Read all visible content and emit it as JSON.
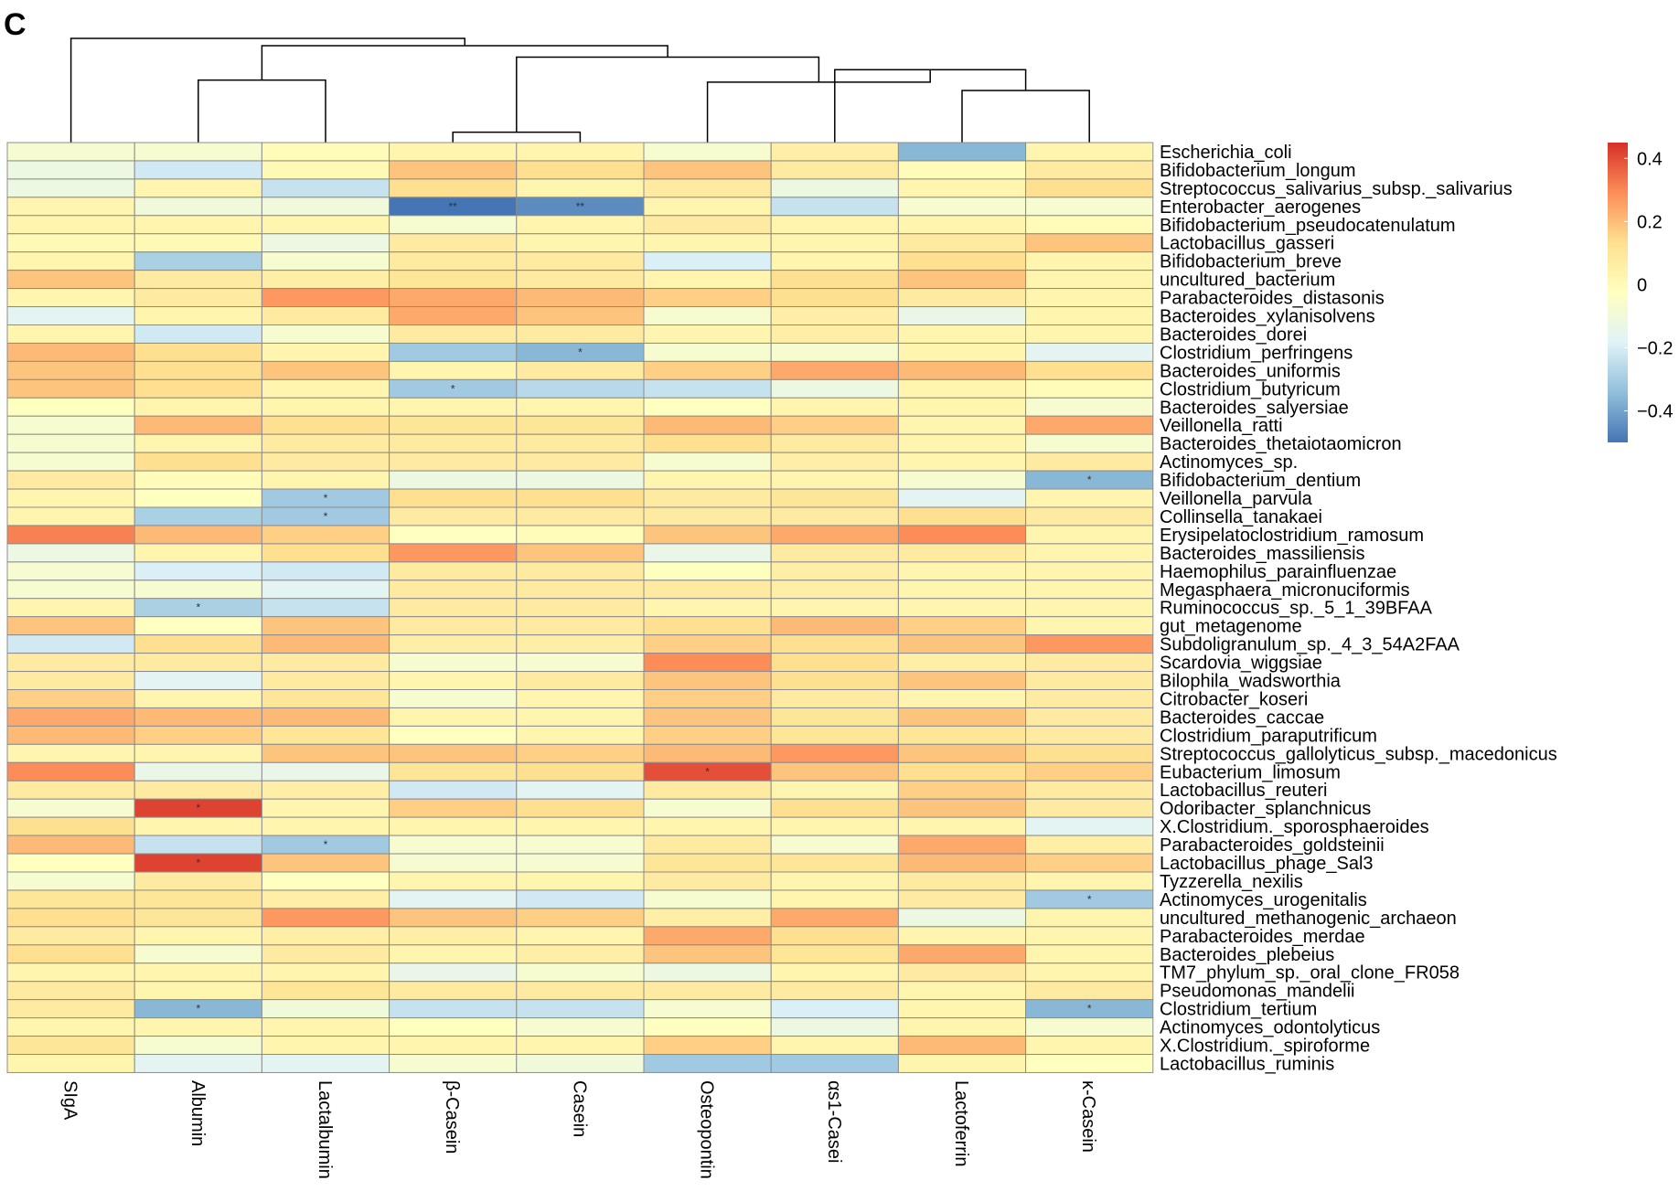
{
  "panel_label": "C",
  "chart_data": {
    "type": "heatmap",
    "title": "",
    "columns": [
      "SIgA",
      "Albumin",
      "Lactalbumin",
      "β-Casein",
      "Casein",
      "Osteopontin",
      "αs1-Casei",
      "Lactoferrin",
      "κ-Casein"
    ],
    "rows": [
      "Escherichia_coli",
      "Bifidobacterium_longum",
      "Streptococcus_salivarius_subsp._salivarius",
      "Enterobacter_aerogenes",
      "Bifidobacterium_pseudocatenulatum",
      "Lactobacillus_gasseri",
      "Bifidobacterium_breve",
      "uncultured_bacterium",
      "Parabacteroides_distasonis",
      "Bacteroides_xylanisolvens",
      "Bacteroides_dorei",
      "Clostridium_perfringens",
      "Bacteroides_uniformis",
      "Clostridium_butyricum",
      "Bacteroides_salyersiae",
      "Veillonella_ratti",
      "Bacteroides_thetaiotaomicron",
      "Actinomyces_sp.",
      "Bifidobacterium_dentium",
      "Veillonella_parvula",
      "Collinsella_tanakaei",
      "Erysipelatoclostridium_ramosum",
      "Bacteroides_massiliensis",
      "Haemophilus_parainfluenzae",
      "Megasphaera_micronuciformis",
      "Ruminococcus_sp._5_1_39BFAA",
      "gut_metagenome",
      "Subdoligranulum_sp._4_3_54A2FAA",
      "Scardovia_wiggsiae",
      "Bilophila_wadsworthia",
      "Citrobacter_koseri",
      "Bacteroides_caccae",
      "Clostridium_paraputrificum",
      "Streptococcus_gallolyticus_subsp._macedonicus",
      "Eubacterium_limosum",
      "Lactobacillus_reuteri",
      "Odoribacter_splanchnicus",
      "X.Clostridium._sporosphaeroides",
      "Parabacteroides_goldsteinii",
      "Lactobacillus_phage_Sal3",
      "Tyzzerella_nexilis",
      "Actinomyces_urogenitalis",
      "uncultured_methanogenic_archaeon",
      "Parabacteroides_merdae",
      "Bacteroides_plebeius",
      "TM7_phylum_sp._oral_clone_FR058",
      "Pseudomonas_mandelii",
      "Clostridium_tertium",
      "Actinomyces_odontolyticus",
      "X.Clostridium._spiroforme",
      "Lactobacillus_ruminis"
    ],
    "values": [
      [
        -0.05,
        -0.05,
        0.02,
        0.05,
        0.05,
        -0.05,
        0.08,
        -0.35,
        0.05
      ],
      [
        -0.1,
        -0.2,
        0.03,
        0.2,
        0.15,
        0.2,
        0.1,
        0.02,
        0.1
      ],
      [
        -0.1,
        0.05,
        -0.22,
        0.15,
        0.05,
        0.1,
        -0.1,
        0.05,
        0.15
      ],
      [
        0.05,
        -0.08,
        -0.08,
        -0.52,
        -0.45,
        0.05,
        -0.22,
        -0.05,
        -0.05
      ],
      [
        0.05,
        0.05,
        0.05,
        -0.05,
        0.05,
        0.1,
        0.05,
        0.05,
        0.02
      ],
      [
        0.03,
        0.03,
        -0.1,
        0.1,
        0.05,
        0.05,
        0.05,
        0.1,
        0.2
      ],
      [
        0.05,
        -0.28,
        -0.05,
        0.1,
        0.1,
        -0.18,
        0.05,
        0.15,
        0.05
      ],
      [
        0.2,
        0.1,
        0.08,
        0.12,
        0.1,
        0.05,
        0.15,
        0.2,
        0.05
      ],
      [
        0.05,
        0.1,
        0.28,
        0.25,
        0.22,
        0.18,
        0.15,
        0.1,
        0.05
      ],
      [
        -0.15,
        0.05,
        0.1,
        0.25,
        0.2,
        -0.05,
        0.08,
        -0.12,
        0.05
      ],
      [
        0.05,
        -0.2,
        -0.05,
        0.1,
        0.1,
        0.05,
        0.08,
        0.05,
        0.05
      ],
      [
        0.22,
        0.15,
        0.05,
        -0.3,
        -0.35,
        -0.05,
        -0.05,
        0.05,
        -0.15
      ],
      [
        0.2,
        0.15,
        0.2,
        0.05,
        0.1,
        0.18,
        0.25,
        0.22,
        0.15
      ],
      [
        0.2,
        0.15,
        0.05,
        -0.3,
        -0.25,
        -0.22,
        -0.1,
        0.05,
        0.02
      ],
      [
        0.0,
        0.05,
        0.05,
        0.05,
        0.05,
        0.0,
        0.05,
        0.05,
        -0.05
      ],
      [
        -0.05,
        0.22,
        0.15,
        0.12,
        0.12,
        0.22,
        0.18,
        0.05,
        0.25
      ],
      [
        -0.05,
        0.05,
        0.1,
        0.1,
        0.1,
        0.15,
        0.1,
        0.05,
        -0.05
      ],
      [
        -0.05,
        0.15,
        0.1,
        0.1,
        0.1,
        -0.05,
        0.08,
        0.05,
        0.1
      ],
      [
        0.1,
        0.02,
        0.05,
        -0.1,
        -0.1,
        0.05,
        0.05,
        -0.05,
        -0.35
      ],
      [
        0.05,
        0.0,
        -0.3,
        0.15,
        0.15,
        0.1,
        0.12,
        -0.15,
        0.05
      ],
      [
        0.05,
        -0.28,
        -0.3,
        0.1,
        0.1,
        0.1,
        0.1,
        0.15,
        0.1
      ],
      [
        0.32,
        0.22,
        0.18,
        0.0,
        0.02,
        0.2,
        0.25,
        0.3,
        0.05
      ],
      [
        -0.1,
        0.05,
        0.15,
        0.28,
        0.2,
        -0.12,
        0.1,
        0.1,
        0.05
      ],
      [
        -0.05,
        -0.18,
        -0.2,
        0.1,
        0.1,
        0.0,
        0.08,
        0.05,
        0.05
      ],
      [
        -0.05,
        -0.05,
        -0.15,
        0.1,
        0.1,
        0.1,
        0.08,
        0.05,
        0.05
      ],
      [
        0.05,
        -0.28,
        -0.22,
        0.1,
        0.1,
        0.05,
        0.05,
        0.05,
        0.05
      ],
      [
        0.2,
        0.0,
        0.2,
        0.1,
        0.1,
        0.15,
        0.22,
        0.18,
        0.05
      ],
      [
        -0.2,
        0.15,
        0.22,
        0.08,
        0.08,
        0.18,
        0.15,
        0.2,
        0.28
      ],
      [
        0.1,
        0.1,
        0.1,
        -0.05,
        -0.05,
        0.3,
        0.15,
        0.08,
        0.1
      ],
      [
        0.1,
        -0.15,
        0.1,
        0.05,
        0.1,
        0.2,
        0.15,
        0.2,
        0.1
      ],
      [
        0.18,
        0.05,
        0.12,
        -0.05,
        0.05,
        0.18,
        0.1,
        0.05,
        0.1
      ],
      [
        0.25,
        0.22,
        0.22,
        0.05,
        0.05,
        0.2,
        0.12,
        0.2,
        0.1
      ],
      [
        0.22,
        0.18,
        0.12,
        0.0,
        0.05,
        0.18,
        0.12,
        0.12,
        0.1
      ],
      [
        0.05,
        0.05,
        0.2,
        0.2,
        0.18,
        0.22,
        0.28,
        0.2,
        0.15
      ],
      [
        0.3,
        -0.12,
        -0.12,
        0.12,
        0.15,
        0.4,
        0.2,
        0.15,
        0.18
      ],
      [
        0.1,
        0.1,
        0.08,
        -0.2,
        -0.15,
        0.1,
        0.05,
        0.18,
        0.1
      ],
      [
        -0.05,
        0.42,
        0.05,
        0.18,
        0.15,
        -0.05,
        0.15,
        0.2,
        0.1
      ],
      [
        0.15,
        0.05,
        0.05,
        0.05,
        0.05,
        0.05,
        0.05,
        0.05,
        -0.15
      ],
      [
        0.22,
        -0.22,
        -0.3,
        -0.05,
        -0.05,
        0.1,
        -0.05,
        0.25,
        0.08
      ],
      [
        0.0,
        0.42,
        0.2,
        -0.05,
        -0.05,
        0.12,
        0.12,
        0.22,
        0.18
      ],
      [
        -0.05,
        0.1,
        0.0,
        0.05,
        0.05,
        0.1,
        0.05,
        0.1,
        0.05
      ],
      [
        0.12,
        0.12,
        0.08,
        -0.15,
        -0.2,
        -0.05,
        0.05,
        0.1,
        -0.3
      ],
      [
        0.15,
        0.12,
        0.28,
        0.2,
        0.18,
        0.08,
        0.25,
        -0.1,
        0.05
      ],
      [
        0.1,
        0.05,
        0.08,
        0.08,
        0.05,
        0.25,
        0.15,
        0.05,
        0.05
      ],
      [
        0.15,
        -0.05,
        0.1,
        0.05,
        0.08,
        0.2,
        0.12,
        0.25,
        0.05
      ],
      [
        0.05,
        0.05,
        0.05,
        -0.12,
        -0.05,
        -0.1,
        0.05,
        0.1,
        0.05
      ],
      [
        0.1,
        0.05,
        0.12,
        0.1,
        0.1,
        0.1,
        0.1,
        0.05,
        0.1
      ],
      [
        0.1,
        -0.35,
        -0.08,
        -0.22,
        -0.22,
        -0.05,
        -0.18,
        0.05,
        -0.35
      ],
      [
        0.05,
        0.05,
        0.05,
        0.0,
        -0.05,
        0.0,
        -0.1,
        0.05,
        -0.05
      ],
      [
        0.12,
        -0.05,
        0.05,
        0.05,
        0.05,
        0.18,
        0.05,
        0.22,
        0.05
      ],
      [
        0.05,
        -0.15,
        -0.15,
        -0.05,
        -0.08,
        -0.3,
        -0.3,
        0.05,
        0.0
      ]
    ],
    "significance": [
      {
        "row": 3,
        "col": 3,
        "mark": "**"
      },
      {
        "row": 3,
        "col": 4,
        "mark": "**"
      },
      {
        "row": 11,
        "col": 4,
        "mark": "*"
      },
      {
        "row": 13,
        "col": 3,
        "mark": "*"
      },
      {
        "row": 18,
        "col": 8,
        "mark": "*"
      },
      {
        "row": 19,
        "col": 2,
        "mark": "*"
      },
      {
        "row": 20,
        "col": 2,
        "mark": "*"
      },
      {
        "row": 25,
        "col": 1,
        "mark": "*"
      },
      {
        "row": 34,
        "col": 5,
        "mark": "*"
      },
      {
        "row": 36,
        "col": 1,
        "mark": "*"
      },
      {
        "row": 38,
        "col": 2,
        "mark": "*"
      },
      {
        "row": 39,
        "col": 1,
        "mark": "*"
      },
      {
        "row": 41,
        "col": 8,
        "mark": "*"
      },
      {
        "row": 47,
        "col": 1,
        "mark": "*"
      },
      {
        "row": 47,
        "col": 8,
        "mark": "*"
      }
    ],
    "column_dendrogram": {
      "order": [
        "SIgA",
        "Albumin",
        "Lactalbumin",
        "β-Casein",
        "Casein",
        "Osteopontin",
        "αs1-Casei",
        "Lactoferrin",
        "κ-Casein"
      ],
      "merges": [
        {
          "a": 3,
          "b": 4,
          "height": 0.1
        },
        {
          "a": 7,
          "b": 8,
          "height": 0.5
        },
        {
          "a": 1,
          "b": 2,
          "height": 0.6
        },
        {
          "a": 6,
          "b": -2,
          "height": 0.7
        },
        {
          "a": 5,
          "b": -4,
          "height": 0.58
        },
        {
          "a": -1,
          "b": -5,
          "height": 0.82
        },
        {
          "a": -3,
          "b": -6,
          "height": 0.93
        },
        {
          "a": 0,
          "b": -7,
          "height": 1.0
        }
      ]
    },
    "colorbar": {
      "min": -0.5,
      "max": 0.45,
      "ticks": [
        0.4,
        0.2,
        0,
        -0.2,
        -0.4
      ],
      "tick_labels": [
        "0.4",
        "0.2",
        "0",
        "−0.2",
        "−0.4"
      ],
      "colors": [
        "#4575b4",
        "#91bfdb",
        "#e0f3f8",
        "#ffffbf",
        "#fee090",
        "#fc8d59",
        "#d73027"
      ]
    },
    "xlabel": "",
    "ylabel": ""
  }
}
